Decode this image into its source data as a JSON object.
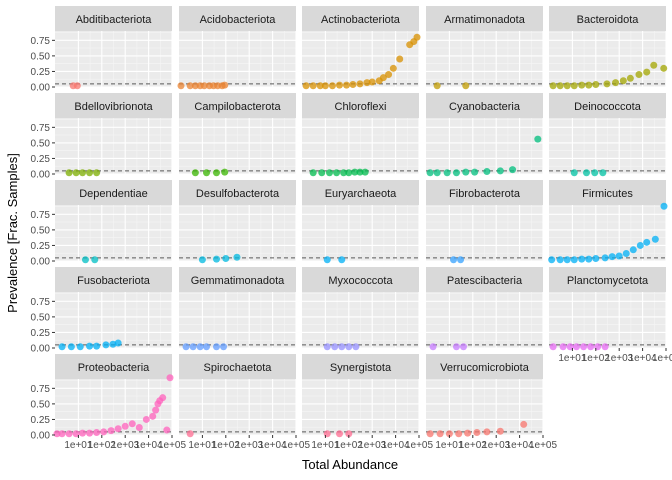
{
  "chart_data": {
    "type": "scatter",
    "xlabel": "Total Abundance",
    "ylabel": "Prevalence [Frac. Samples]",
    "x_scale": "log10",
    "xlim": [
      1,
      100000
    ],
    "ylim": [
      0,
      0.9
    ],
    "x_ticks": [
      10,
      100,
      1000,
      10000,
      100000
    ],
    "x_tick_labels": [
      "1e+01",
      "1e+02",
      "1e+03",
      "1e+04",
      "1e+05"
    ],
    "y_ticks": [
      0,
      0.25,
      0.5,
      0.75
    ],
    "y_tick_labels": [
      "0.00",
      "0.25",
      "0.50",
      "0.75"
    ],
    "reference_line_y": 0.05,
    "grid": true,
    "legend": "none",
    "layout": "facet_wrap 5 columns",
    "panels": [
      {
        "name": "Abditibacteriota",
        "color": "#F8766D",
        "points": [
          [
            6,
            0.02
          ],
          [
            9,
            0.02
          ]
        ]
      },
      {
        "name": "Acidobacteriota",
        "color": "#EA8331",
        "points": [
          [
            1.2,
            0.02
          ],
          [
            3,
            0.02
          ],
          [
            5,
            0.02
          ],
          [
            8,
            0.02
          ],
          [
            12,
            0.02
          ],
          [
            20,
            0.02
          ],
          [
            30,
            0.02
          ],
          [
            45,
            0.02
          ],
          [
            70,
            0.02
          ],
          [
            90,
            0.03
          ]
        ]
      },
      {
        "name": "Actinobacteriota",
        "color": "#D89000",
        "points": [
          [
            1.5,
            0.02
          ],
          [
            3,
            0.02
          ],
          [
            6,
            0.02
          ],
          [
            10,
            0.02
          ],
          [
            20,
            0.02
          ],
          [
            40,
            0.03
          ],
          [
            80,
            0.03
          ],
          [
            150,
            0.04
          ],
          [
            300,
            0.05
          ],
          [
            600,
            0.07
          ],
          [
            1000,
            0.08
          ],
          [
            2000,
            0.1
          ],
          [
            3000,
            0.15
          ],
          [
            5000,
            0.2
          ],
          [
            8000,
            0.3
          ],
          [
            15000,
            0.45
          ],
          [
            40000,
            0.68
          ],
          [
            60000,
            0.73
          ],
          [
            150000,
            0.8
          ]
        ]
      },
      {
        "name": "Armatimonadota",
        "color": "#C09B00",
        "points": [
          [
            3,
            0.02
          ],
          [
            50,
            0.02
          ]
        ]
      },
      {
        "name": "Bacteroidota",
        "color": "#A3A500",
        "points": [
          [
            1.5,
            0.02
          ],
          [
            3,
            0.02
          ],
          [
            6,
            0.02
          ],
          [
            12,
            0.02
          ],
          [
            25,
            0.03
          ],
          [
            50,
            0.03
          ],
          [
            100,
            0.04
          ],
          [
            300,
            0.05
          ],
          [
            700,
            0.07
          ],
          [
            1500,
            0.1
          ],
          [
            3000,
            0.14
          ],
          [
            7000,
            0.2
          ],
          [
            15000,
            0.24
          ],
          [
            30000,
            0.35
          ],
          [
            80000,
            0.3
          ]
        ]
      },
      {
        "name": "Bdellovibrionota",
        "color": "#7CAE00",
        "points": [
          [
            4,
            0.02
          ],
          [
            8,
            0.02
          ],
          [
            15,
            0.02
          ],
          [
            30,
            0.02
          ],
          [
            60,
            0.02
          ]
        ]
      },
      {
        "name": "Campilobacterota",
        "color": "#39B600",
        "points": [
          [
            5,
            0.02
          ],
          [
            15,
            0.02
          ],
          [
            40,
            0.02
          ],
          [
            90,
            0.03
          ]
        ]
      },
      {
        "name": "Chloroflexi",
        "color": "#00BB4E",
        "points": [
          [
            3,
            0.02
          ],
          [
            7,
            0.02
          ],
          [
            15,
            0.02
          ],
          [
            30,
            0.02
          ],
          [
            60,
            0.02
          ],
          [
            100,
            0.02
          ],
          [
            180,
            0.03
          ],
          [
            300,
            0.03
          ],
          [
            500,
            0.03
          ]
        ]
      },
      {
        "name": "Cyanobacteria",
        "color": "#00BF7D",
        "points": [
          [
            1.5,
            0.02
          ],
          [
            3,
            0.02
          ],
          [
            8,
            0.02
          ],
          [
            20,
            0.02
          ],
          [
            50,
            0.03
          ],
          [
            120,
            0.03
          ],
          [
            400,
            0.04
          ],
          [
            1500,
            0.05
          ],
          [
            5000,
            0.07
          ],
          [
            60000,
            0.56
          ]
        ]
      },
      {
        "name": "Deinococcota",
        "color": "#00C1A3",
        "points": [
          [
            12,
            0.02
          ],
          [
            40,
            0.02
          ],
          [
            90,
            0.02
          ],
          [
            200,
            0.02
          ]
        ]
      },
      {
        "name": "Dependentiae",
        "color": "#00BFC4",
        "points": [
          [
            20,
            0.02
          ],
          [
            50,
            0.02
          ]
        ]
      },
      {
        "name": "Desulfobacterota",
        "color": "#00BAE0",
        "points": [
          [
            10,
            0.02
          ],
          [
            40,
            0.03
          ],
          [
            100,
            0.04
          ],
          [
            300,
            0.06
          ]
        ]
      },
      {
        "name": "Euryarchaeota",
        "color": "#00B0F6",
        "points": [
          [
            12,
            0.02
          ],
          [
            50,
            0.02
          ]
        ]
      },
      {
        "name": "Fibrobacterota",
        "color": "#35A2FF",
        "points": [
          [
            15,
            0.02
          ],
          [
            30,
            0.02
          ]
        ]
      },
      {
        "name": "Firmicutes",
        "color": "#00B0F6",
        "points": [
          [
            1.3,
            0.02
          ],
          [
            3,
            0.02
          ],
          [
            6,
            0.02
          ],
          [
            12,
            0.02
          ],
          [
            25,
            0.03
          ],
          [
            50,
            0.03
          ],
          [
            100,
            0.04
          ],
          [
            250,
            0.05
          ],
          [
            500,
            0.07
          ],
          [
            1000,
            0.08
          ],
          [
            2000,
            0.12
          ],
          [
            4000,
            0.18
          ],
          [
            8000,
            0.25
          ],
          [
            15000,
            0.3
          ],
          [
            35000,
            0.35
          ],
          [
            120000,
            0.88
          ]
        ]
      },
      {
        "name": "Fusobacteriota",
        "color": "#00B0F6",
        "points": [
          [
            2,
            0.02
          ],
          [
            5,
            0.02
          ],
          [
            12,
            0.02
          ],
          [
            30,
            0.03
          ],
          [
            60,
            0.03
          ],
          [
            150,
            0.05
          ],
          [
            300,
            0.06
          ],
          [
            500,
            0.08
          ]
        ]
      },
      {
        "name": "Gemmatimonadota",
        "color": "#619CFF",
        "points": [
          [
            2,
            0.02
          ],
          [
            4,
            0.02
          ],
          [
            8,
            0.02
          ],
          [
            15,
            0.02
          ],
          [
            40,
            0.02
          ],
          [
            80,
            0.02
          ]
        ]
      },
      {
        "name": "Myxococcota",
        "color": "#9590FF",
        "points": [
          [
            12,
            0.02
          ],
          [
            25,
            0.02
          ],
          [
            50,
            0.02
          ],
          [
            100,
            0.02
          ],
          [
            200,
            0.02
          ]
        ]
      },
      {
        "name": "Patescibacteria",
        "color": "#C77CFF",
        "points": [
          [
            2,
            0.02
          ],
          [
            20,
            0.02
          ],
          [
            40,
            0.02
          ]
        ]
      },
      {
        "name": "Planctomycetota",
        "color": "#E76BF3",
        "points": [
          [
            1.5,
            0.02
          ],
          [
            4,
            0.02
          ],
          [
            8,
            0.02
          ],
          [
            15,
            0.02
          ],
          [
            30,
            0.02
          ],
          [
            60,
            0.02
          ],
          [
            120,
            0.02
          ],
          [
            250,
            0.02
          ]
        ]
      },
      {
        "name": "Proteobacteria",
        "color": "#FF62BC",
        "points": [
          [
            1.2,
            0.02
          ],
          [
            2,
            0.02
          ],
          [
            4,
            0.02
          ],
          [
            8,
            0.02
          ],
          [
            15,
            0.03
          ],
          [
            30,
            0.03
          ],
          [
            60,
            0.04
          ],
          [
            120,
            0.05
          ],
          [
            250,
            0.07
          ],
          [
            500,
            0.1
          ],
          [
            1000,
            0.14
          ],
          [
            2000,
            0.18
          ],
          [
            4000,
            0.12
          ],
          [
            8000,
            0.25
          ],
          [
            15000,
            0.3
          ],
          [
            25000,
            0.5
          ],
          [
            30000,
            0.55
          ],
          [
            40000,
            0.6
          ],
          [
            20000,
            0.4
          ],
          [
            60000,
            0.08
          ],
          [
            120000,
            0.92
          ]
        ]
      },
      {
        "name": "Spirochaetota",
        "color": "#FF6C91",
        "points": [
          [
            3,
            0.02
          ]
        ]
      },
      {
        "name": "Synergistota",
        "color": "#FF6C91",
        "points": [
          [
            12,
            0.02
          ],
          [
            40,
            0.02
          ],
          [
            100,
            0.02
          ]
        ]
      },
      {
        "name": "Verrucomicrobiota",
        "color": "#F8766D",
        "points": [
          [
            1.5,
            0.02
          ],
          [
            4,
            0.02
          ],
          [
            10,
            0.02
          ],
          [
            25,
            0.02
          ],
          [
            60,
            0.03
          ],
          [
            150,
            0.04
          ],
          [
            400,
            0.05
          ],
          [
            1500,
            0.06
          ],
          [
            15000,
            0.17
          ]
        ]
      }
    ]
  }
}
